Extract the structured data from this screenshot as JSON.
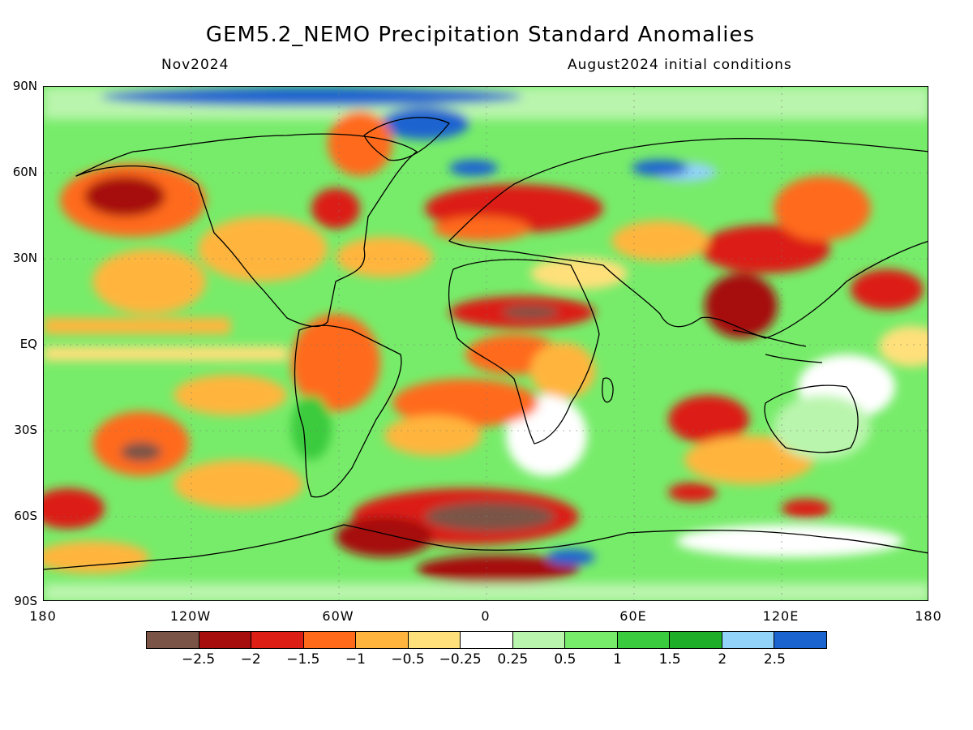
{
  "title": "GEM5.2_NEMO Precipitation Standard Anomalies",
  "valid_month": "Nov2024",
  "initial_conditions": "August2024 initial conditions",
  "map": {
    "lat_labels": [
      "90N",
      "60N",
      "30N",
      "EQ",
      "30S",
      "60S",
      "90S"
    ],
    "lon_labels": [
      "180",
      "120W",
      "60W",
      "0",
      "60E",
      "120E",
      "180"
    ],
    "lat_range": [
      -90,
      90
    ],
    "lon_range": [
      -180,
      180
    ]
  },
  "colorbar": {
    "colors": [
      "#7a5446",
      "#a60d0d",
      "#dc1e14",
      "#ff6a1a",
      "#ffb53d",
      "#ffe07a",
      "#ffffff",
      "#baf5ad",
      "#77ec6a",
      "#3acb3e",
      "#1eae28",
      "#91d3f9",
      "#1a64d0"
    ],
    "labels": [
      "−2.5",
      "−2",
      "−1.5",
      "−1",
      "−0.5",
      "−0.25",
      "0.25",
      "0.5",
      "1",
      "1.5",
      "2",
      "2.5"
    ]
  }
}
